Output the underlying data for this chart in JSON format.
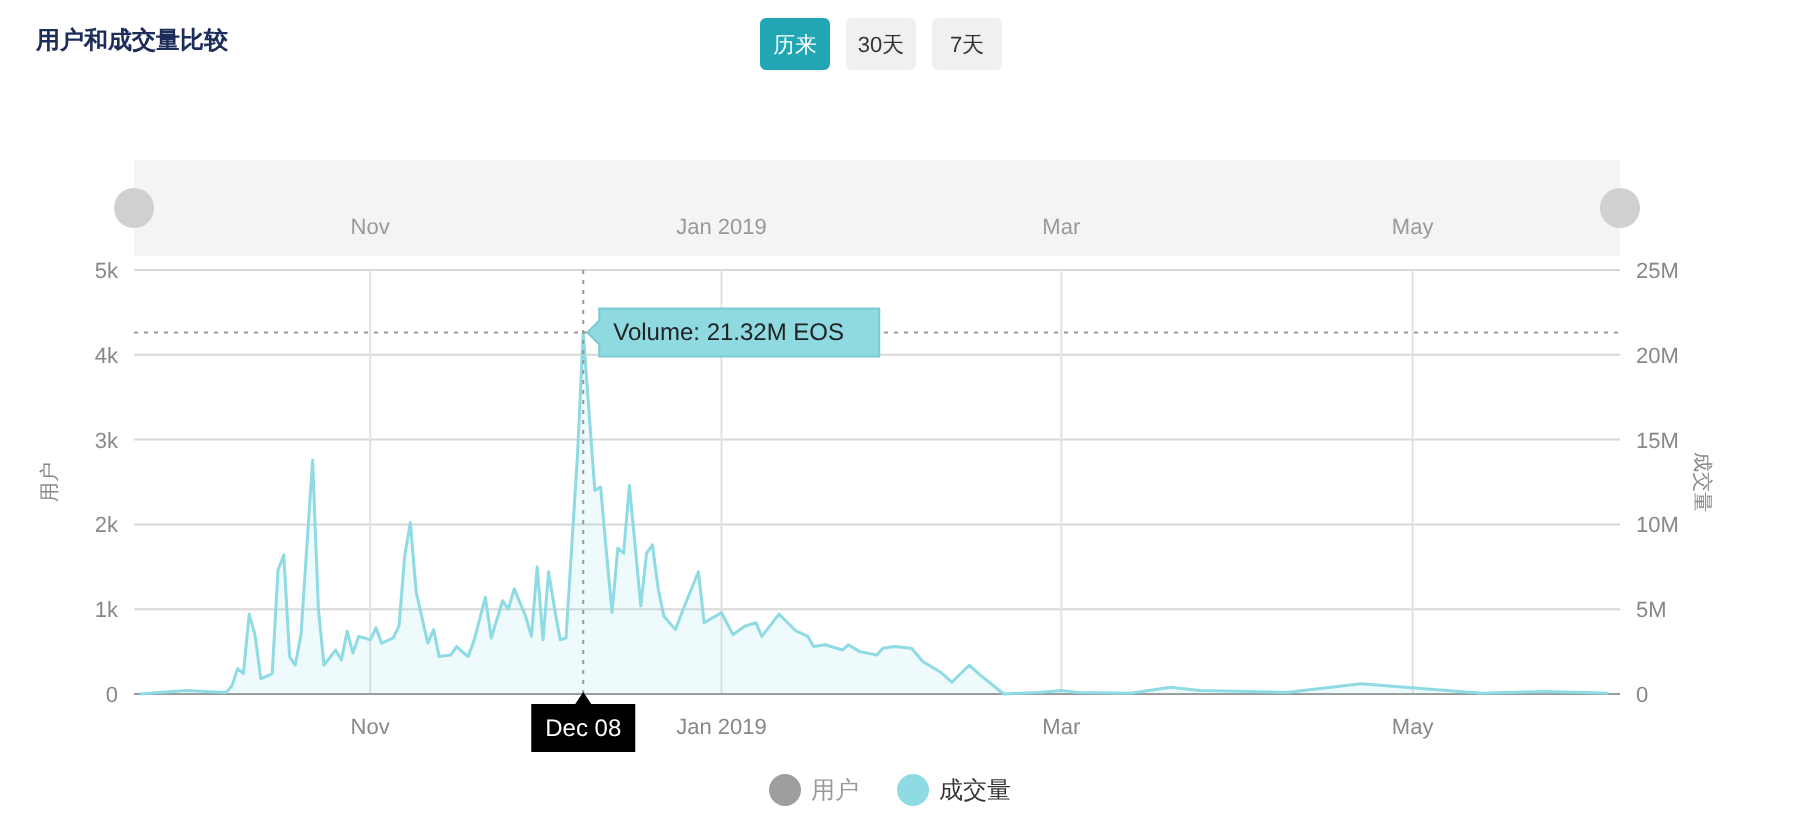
{
  "chart_data": {
    "type": "area",
    "title": "用户和成交量比较",
    "ylabel": "用户",
    "y2label": "成交量",
    "legend": "bottom",
    "grid": true,
    "x": [
      "2018-09-22",
      "2018-09-30",
      "2018-10-07",
      "2018-10-08",
      "2018-10-09",
      "2018-10-10",
      "2018-10-11",
      "2018-10-12",
      "2018-10-13",
      "2018-10-15",
      "2018-10-16",
      "2018-10-17",
      "2018-10-18",
      "2018-10-19",
      "2018-10-20",
      "2018-10-22",
      "2018-10-23",
      "2018-10-24",
      "2018-10-26",
      "2018-10-27",
      "2018-10-28",
      "2018-10-29",
      "2018-10-30",
      "2018-11-01",
      "2018-11-02",
      "2018-11-03",
      "2018-11-05",
      "2018-11-06",
      "2018-11-07",
      "2018-11-08",
      "2018-11-09",
      "2018-11-11",
      "2018-11-12",
      "2018-11-13",
      "2018-11-15",
      "2018-11-16",
      "2018-11-18",
      "2018-11-19",
      "2018-11-21",
      "2018-11-22",
      "2018-11-24",
      "2018-11-25",
      "2018-11-26",
      "2018-11-28",
      "2018-11-29",
      "2018-11-30",
      "2018-12-01",
      "2018-12-02",
      "2018-12-03",
      "2018-12-04",
      "2018-12-05",
      "2018-12-07",
      "2018-12-08",
      "2018-12-10",
      "2018-12-11",
      "2018-12-12",
      "2018-12-13",
      "2018-12-14",
      "2018-12-15",
      "2018-12-16",
      "2018-12-18",
      "2018-12-19",
      "2018-12-20",
      "2018-12-21",
      "2018-12-22",
      "2018-12-24",
      "2018-12-25",
      "2018-12-28",
      "2018-12-29",
      "2019-01-01",
      "2019-01-03",
      "2019-01-05",
      "2019-01-07",
      "2019-01-08",
      "2019-01-11",
      "2019-01-14",
      "2019-01-16",
      "2019-01-17",
      "2019-01-19",
      "2019-01-22",
      "2019-01-23",
      "2019-01-25",
      "2019-01-28",
      "2019-01-29",
      "2019-01-31",
      "2019-02-03",
      "2019-02-05",
      "2019-02-08",
      "2019-02-10",
      "2019-02-13",
      "2019-02-15",
      "2019-02-19",
      "2019-02-25",
      "2019-03-01",
      "2019-03-04",
      "2019-03-13",
      "2019-03-20",
      "2019-03-25",
      "2019-04-09",
      "2019-04-22",
      "2019-05-13",
      "2019-05-24",
      "2019-05-31",
      "2019-06-04"
    ],
    "series": [
      {
        "name": "用户",
        "color": "#9e9e9e",
        "values": [
          null,
          null,
          null,
          null,
          null,
          null,
          null,
          null,
          null,
          null,
          null,
          null,
          null,
          null,
          null,
          null,
          null,
          null,
          null,
          null,
          null,
          null,
          null,
          null,
          null,
          null,
          null,
          null,
          null,
          null,
          null,
          null,
          null,
          null,
          null,
          null,
          null,
          null,
          null,
          null,
          null,
          null,
          null,
          null,
          null,
          null,
          null,
          null,
          null,
          null,
          null,
          null,
          null,
          null,
          null,
          null,
          null,
          null,
          null,
          null,
          null,
          null,
          null,
          null,
          null,
          null,
          null,
          null,
          null,
          null,
          null,
          null,
          null,
          null,
          null,
          null,
          null,
          null,
          null,
          null,
          null,
          null,
          null,
          null,
          null,
          null,
          null,
          null,
          null,
          null,
          null,
          null,
          null,
          null,
          null,
          null,
          null,
          null,
          null,
          null,
          null,
          null,
          null,
          null
        ]
      },
      {
        "name": "成交量",
        "color": "#8fdbe3",
        "axis": "y2",
        "values": [
          0,
          0.2,
          0.1,
          0.5,
          1.5,
          1.2,
          4.7,
          3.5,
          0.9,
          1.2,
          7.3,
          8.2,
          2.2,
          1.7,
          3.5,
          13.8,
          5.0,
          1.7,
          2.6,
          2.0,
          3.7,
          2.4,
          3.4,
          3.2,
          3.9,
          3.0,
          3.3,
          4.0,
          8.2,
          10.1,
          6.0,
          3.0,
          3.8,
          2.2,
          2.3,
          2.8,
          2.2,
          3.1,
          5.7,
          3.3,
          5.5,
          5.0,
          6.2,
          4.6,
          3.4,
          7.5,
          3.2,
          7.2,
          5.1,
          3.2,
          3.3,
          14,
          21.32,
          12.0,
          12.2,
          8.5,
          4.8,
          8.6,
          8.3,
          12.3,
          5.2,
          8.3,
          8.8,
          6.2,
          4.6,
          3.8,
          4.7,
          7.2,
          4.2,
          4.8,
          3.5,
          4.0,
          4.2,
          3.4,
          4.7,
          3.7,
          3.4,
          2.8,
          2.9,
          2.6,
          2.9,
          2.5,
          2.3,
          2.7,
          2.8,
          2.7,
          1.9,
          1.3,
          0.7,
          1.7,
          1.1,
          0,
          0.1,
          0.2,
          0.1,
          0.05,
          0.4,
          0.2,
          0.1,
          0.6,
          0.05,
          0.15,
          0.1,
          0.05
        ]
      }
    ],
    "xlim": [
      "2018-09-21",
      "2019-06-06"
    ],
    "xticks": [
      {
        "value": "2018-11-01",
        "label": "Nov"
      },
      {
        "value": "2019-01-01",
        "label": "Jan 2019"
      },
      {
        "value": "2019-03-01",
        "label": "Mar"
      },
      {
        "value": "2019-05-01",
        "label": "May"
      }
    ],
    "ylim": [
      0,
      5000
    ],
    "yticks": [
      0,
      {
        "value": 1000,
        "label": "1k"
      },
      {
        "value": 2000,
        "label": "2k"
      },
      {
        "value": 3000,
        "label": "3k"
      },
      {
        "value": 4000,
        "label": "4k"
      },
      {
        "value": 5000,
        "label": "5k"
      }
    ],
    "y2lim": [
      0,
      25
    ],
    "y2ticks": [
      0,
      {
        "value": 5,
        "label": "5M"
      },
      {
        "value": 10,
        "label": "10M"
      },
      {
        "value": 15,
        "label": "15M"
      },
      {
        "value": 20,
        "label": "20M"
      },
      {
        "value": 25,
        "label": "25M"
      }
    ],
    "ref_lines": [
      {
        "axis": "x",
        "value": "2018-12-08",
        "line_style": "dotted"
      },
      {
        "axis": "y2",
        "value": 21.32,
        "line_style": "dotted"
      }
    ],
    "annotations": [
      "历来",
      "30天",
      "7天",
      "Volume: 21.32M EOS",
      "Dec 08"
    ]
  }
}
